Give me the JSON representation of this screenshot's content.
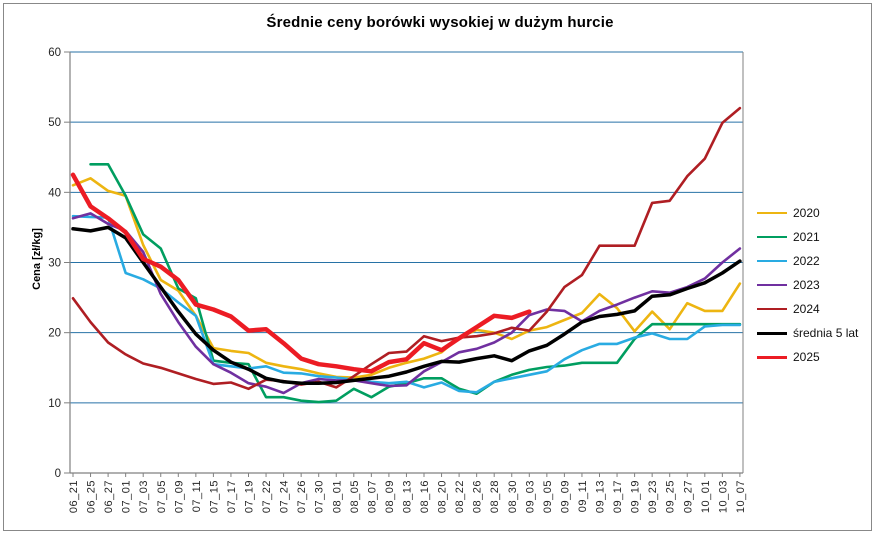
{
  "title": "Średnie ceny borówki wysokiej w dużym hurcie",
  "colors": {
    "grid": "#2772A6",
    "axis": "#808080",
    "tick_text": "#262626"
  },
  "chart_data": {
    "type": "line",
    "title": "Średnie ceny borówki wysokiej w dużym hurcie",
    "xlabel": "",
    "ylabel": "Cena [zł/kg]",
    "ylim": [
      0,
      60
    ],
    "yticks": [
      0,
      10,
      20,
      30,
      40,
      50,
      60
    ],
    "grid": true,
    "legend_position": "right",
    "categories": [
      "06_21",
      "06_25",
      "06_27",
      "07_01",
      "07_03",
      "07_05",
      "07_09",
      "07_11",
      "07_15",
      "07_17",
      "07_19",
      "07_22",
      "07_24",
      "07_26",
      "07_30",
      "08_01",
      "08_05",
      "08_07",
      "08_09",
      "08_13",
      "08_16",
      "08_20",
      "08_22",
      "08_26",
      "08_28",
      "08_30",
      "09_03",
      "09_05",
      "09_09",
      "09_11",
      "09_13",
      "09_17",
      "09_19",
      "09_23",
      "09_25",
      "09_27",
      "10_01",
      "10_03",
      "10_07"
    ],
    "series": [
      {
        "name": "2020",
        "color": "#EDB511",
        "width": 2.6,
        "values": [
          41,
          42,
          40.2,
          39.5,
          32.5,
          27.5,
          26,
          22.4,
          17.8,
          17.4,
          17.1,
          15.7,
          15.2,
          14.8,
          14.2,
          13.7,
          13.6,
          14,
          15,
          15.7,
          16.3,
          17.2,
          19.3,
          20.4,
          20,
          19.1,
          20.3,
          20.8,
          21.8,
          22.8,
          25.5,
          23.5,
          20.2,
          23,
          20.5,
          24.2,
          23.1,
          23.1,
          27
        ]
      },
      {
        "name": "2021",
        "color": "#009E60",
        "width": 2.6,
        "values": [
          null,
          44,
          44,
          39.5,
          34,
          32,
          26.3,
          24.9,
          16,
          15.7,
          15.5,
          10.8,
          10.8,
          10.3,
          10.1,
          10.3,
          12,
          10.8,
          12.3,
          12.8,
          13.5,
          13.5,
          12,
          11.3,
          13,
          14,
          14.7,
          15.1,
          15.3,
          15.7,
          15.7,
          15.7,
          19.1,
          21.2,
          21.2,
          21.2,
          21.2,
          21.2,
          21.2
        ]
      },
      {
        "name": "2022",
        "color": "#29ABE2",
        "width": 2.6,
        "values": [
          36.6,
          36.5,
          36.4,
          28.5,
          27.6,
          26.3,
          24.3,
          22.4,
          15.5,
          15.2,
          14.9,
          15.2,
          14.3,
          14.2,
          13.8,
          13.6,
          13.3,
          13,
          12.8,
          13,
          12.2,
          12.9,
          11.7,
          11.5,
          13,
          13.5,
          14,
          14.5,
          16.2,
          17.5,
          18.4,
          18.4,
          19.3,
          19.9,
          19.1,
          19.1,
          20.9,
          21.1,
          21.1
        ]
      },
      {
        "name": "2023",
        "color": "#7030A0",
        "width": 2.6,
        "values": [
          36.3,
          37,
          35.5,
          34.5,
          31.5,
          25.5,
          21.5,
          18,
          15.5,
          14.3,
          12.8,
          12.3,
          11.4,
          12.8,
          13.4,
          13.2,
          13.2,
          12.8,
          12.4,
          12.5,
          14.5,
          15.8,
          17.2,
          17.7,
          18.6,
          20,
          22.5,
          23.3,
          23.1,
          21.6,
          23.1,
          24,
          25,
          25.9,
          25.7,
          26.5,
          27.7,
          30,
          32
        ]
      },
      {
        "name": "2024",
        "color": "#AF1E23",
        "width": 2.6,
        "values": [
          24.9,
          21.5,
          18.6,
          16.9,
          15.6,
          15,
          14.2,
          13.4,
          12.7,
          12.9,
          12,
          13.3,
          13.1,
          12.6,
          13,
          12.2,
          13.8,
          15.5,
          17.1,
          17.3,
          19.5,
          18.8,
          19.3,
          19.5,
          19.9,
          20.7,
          20.3,
          23,
          26.5,
          28.2,
          32.4,
          32.4,
          32.4,
          38.5,
          38.8,
          42.3,
          44.8,
          49.9,
          52
        ]
      },
      {
        "name": "średnia 5 lat",
        "color": "#000000",
        "width": 3.5,
        "values": [
          34.8,
          34.5,
          35,
          33.5,
          30,
          26.5,
          23,
          19.8,
          17.5,
          15.8,
          14.8,
          13.5,
          13,
          12.8,
          12.8,
          12.9,
          13.2,
          13.5,
          13.8,
          14.4,
          15.2,
          15.9,
          15.8,
          16.3,
          16.7,
          16,
          17.4,
          18.2,
          19.8,
          21.5,
          22.3,
          22.6,
          23.1,
          25.2,
          25.4,
          26.3,
          27.1,
          28.5,
          30.2
        ]
      },
      {
        "name": "2025",
        "color": "#EC1C24",
        "width": 4.5,
        "values": [
          42.5,
          38,
          36.3,
          34.3,
          30.5,
          29.4,
          27.5,
          24,
          23.3,
          22.3,
          20.3,
          20.5,
          18.5,
          16.3,
          15.5,
          15.2,
          14.8,
          14.5,
          15.8,
          16.2,
          18.5,
          17.5,
          19.2,
          20.8,
          22.4,
          22.1,
          23,
          null,
          null,
          null,
          null,
          null,
          null,
          null,
          null,
          null,
          null,
          null,
          null
        ]
      }
    ]
  }
}
